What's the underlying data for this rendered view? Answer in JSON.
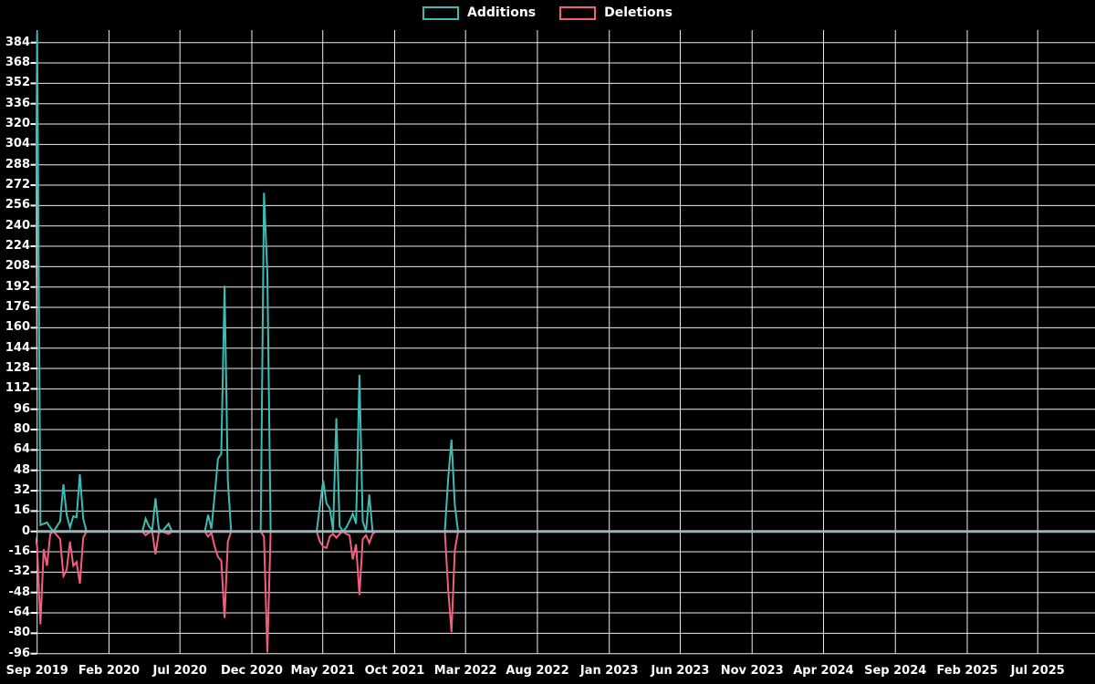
{
  "chart_data": {
    "type": "line",
    "title": "",
    "legend_position": "top-center",
    "grid": true,
    "background_color": "#000000",
    "grid_color": "#ededed",
    "zero_line_color": "#9db4bb",
    "text_color": "#ffffff",
    "legend": [
      {
        "label": "Additions",
        "color": "#3cbcb4"
      },
      {
        "label": "Deletions",
        "color": "#f25e7b"
      }
    ],
    "y_axis": {
      "min": -96,
      "max": 384,
      "step": 16
    },
    "x_axis": {
      "ticks": [
        {
          "label": "Sep 2019",
          "date": "2019-09-01"
        },
        {
          "label": "Feb 2020",
          "date": "2020-02-01"
        },
        {
          "label": "Jul 2020",
          "date": "2020-07-01"
        },
        {
          "label": "Dec 2020",
          "date": "2020-12-01"
        },
        {
          "label": "May 2021",
          "date": "2021-05-01"
        },
        {
          "label": "Oct 2021",
          "date": "2021-10-01"
        },
        {
          "label": "Mar 2022",
          "date": "2022-03-01"
        },
        {
          "label": "Aug 2022",
          "date": "2022-08-01"
        },
        {
          "label": "Jan 2023",
          "date": "2023-01-01"
        },
        {
          "label": "Jun 2023",
          "date": "2023-06-01"
        },
        {
          "label": "Nov 2023",
          "date": "2023-11-01"
        },
        {
          "label": "Apr 2024",
          "date": "2024-04-01"
        },
        {
          "label": "Sep 2024",
          "date": "2024-09-01"
        },
        {
          "label": "Feb 2025",
          "date": "2025-02-01"
        },
        {
          "label": "Jul 2025",
          "date": "2025-07-01"
        }
      ]
    },
    "series_unit": "lines changed per week (deletions negative)",
    "weeks": [
      {
        "date": "2019-08-25",
        "additions": 0,
        "deletions": 0
      },
      {
        "date": "2019-09-01",
        "additions": 392,
        "deletions": -12
      },
      {
        "date": "2019-09-08",
        "additions": 5,
        "deletions": -73
      },
      {
        "date": "2019-09-15",
        "additions": 6,
        "deletions": -14
      },
      {
        "date": "2019-09-22",
        "additions": 7,
        "deletions": -27
      },
      {
        "date": "2019-09-29",
        "additions": 3,
        "deletions": -2
      },
      {
        "date": "2019-10-06",
        "additions": 0,
        "deletions": 0
      },
      {
        "date": "2019-10-20",
        "additions": 8,
        "deletions": -6
      },
      {
        "date": "2019-10-27",
        "additions": 37,
        "deletions": -35
      },
      {
        "date": "2019-11-03",
        "additions": 13,
        "deletions": -30
      },
      {
        "date": "2019-11-10",
        "additions": 3,
        "deletions": -8
      },
      {
        "date": "2019-11-17",
        "additions": 12,
        "deletions": -27
      },
      {
        "date": "2019-11-24",
        "additions": 11,
        "deletions": -24
      },
      {
        "date": "2019-12-01",
        "additions": 45,
        "deletions": -41
      },
      {
        "date": "2019-12-08",
        "additions": 10,
        "deletions": -5
      },
      {
        "date": "2019-12-15",
        "additions": 0,
        "deletions": 0
      },
      {
        "date": "2020-04-12",
        "additions": 0,
        "deletions": 0
      },
      {
        "date": "2020-04-19",
        "additions": 10,
        "deletions": -3
      },
      {
        "date": "2020-04-26",
        "additions": 4,
        "deletions": -1
      },
      {
        "date": "2020-05-03",
        "additions": 1,
        "deletions": 0
      },
      {
        "date": "2020-05-10",
        "additions": 26,
        "deletions": -18
      },
      {
        "date": "2020-05-17",
        "additions": 2,
        "deletions": -1
      },
      {
        "date": "2020-05-24",
        "additions": 0,
        "deletions": 0
      },
      {
        "date": "2020-06-07",
        "additions": 6,
        "deletions": -2
      },
      {
        "date": "2020-06-14",
        "additions": 0,
        "deletions": 0
      },
      {
        "date": "2020-08-23",
        "additions": 0,
        "deletions": 0
      },
      {
        "date": "2020-08-30",
        "additions": 13,
        "deletions": -4
      },
      {
        "date": "2020-09-06",
        "additions": 2,
        "deletions": -1
      },
      {
        "date": "2020-09-13",
        "additions": 29,
        "deletions": -12
      },
      {
        "date": "2020-09-20",
        "additions": 57,
        "deletions": -20
      },
      {
        "date": "2020-09-27",
        "additions": 61,
        "deletions": -23
      },
      {
        "date": "2020-10-04",
        "additions": 193,
        "deletions": -68
      },
      {
        "date": "2020-10-11",
        "additions": 40,
        "deletions": -8
      },
      {
        "date": "2020-10-18",
        "additions": 0,
        "deletions": 0
      },
      {
        "date": "2020-12-20",
        "additions": 0,
        "deletions": 0
      },
      {
        "date": "2020-12-27",
        "additions": 266,
        "deletions": -4
      },
      {
        "date": "2021-01-03",
        "additions": 203,
        "deletions": -95
      },
      {
        "date": "2021-01-10",
        "additions": 0,
        "deletions": 0
      },
      {
        "date": "2021-04-18",
        "additions": 0,
        "deletions": 0
      },
      {
        "date": "2021-04-25",
        "additions": 20,
        "deletions": -8
      },
      {
        "date": "2021-05-02",
        "additions": 40,
        "deletions": -12
      },
      {
        "date": "2021-05-09",
        "additions": 22,
        "deletions": -13
      },
      {
        "date": "2021-05-16",
        "additions": 18,
        "deletions": -4
      },
      {
        "date": "2021-05-23",
        "additions": 1,
        "deletions": -2
      },
      {
        "date": "2021-05-30",
        "additions": 89,
        "deletions": -5
      },
      {
        "date": "2021-06-06",
        "additions": 4,
        "deletions": -2
      },
      {
        "date": "2021-06-13",
        "additions": 0,
        "deletions": 0
      },
      {
        "date": "2021-06-20",
        "additions": 3,
        "deletions": -2
      },
      {
        "date": "2021-06-27",
        "additions": 8,
        "deletions": -3
      },
      {
        "date": "2021-07-04",
        "additions": 14,
        "deletions": -22
      },
      {
        "date": "2021-07-11",
        "additions": 6,
        "deletions": -10
      },
      {
        "date": "2021-07-18",
        "additions": 123,
        "deletions": -50
      },
      {
        "date": "2021-07-25",
        "additions": 8,
        "deletions": -6
      },
      {
        "date": "2021-08-01",
        "additions": 0,
        "deletions": -3
      },
      {
        "date": "2021-08-08",
        "additions": 29,
        "deletions": -9
      },
      {
        "date": "2021-08-15",
        "additions": 0,
        "deletions": -2
      },
      {
        "date": "2021-08-22",
        "additions": 0,
        "deletions": 0
      },
      {
        "date": "2022-01-16",
        "additions": 0,
        "deletions": 0
      },
      {
        "date": "2022-01-23",
        "additions": 42,
        "deletions": -46
      },
      {
        "date": "2022-01-30",
        "additions": 72,
        "deletions": -79
      },
      {
        "date": "2022-02-06",
        "additions": 21,
        "deletions": -15
      },
      {
        "date": "2022-02-13",
        "additions": 0,
        "deletions": 0
      },
      {
        "date": "2025-11-02",
        "additions": 0,
        "deletions": 0
      }
    ]
  }
}
